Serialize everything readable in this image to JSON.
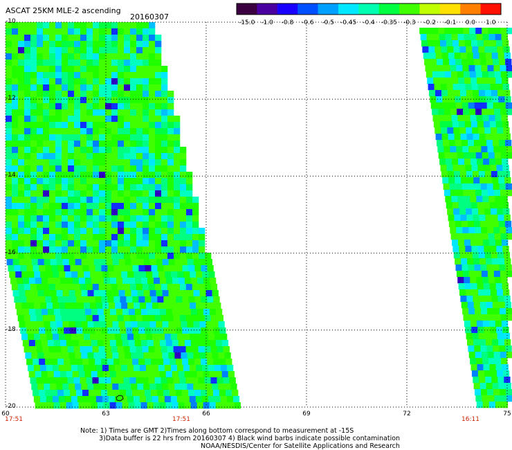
{
  "header": {
    "title": "ASCAT 25KM MLE-2 ascending",
    "date": "20160307"
  },
  "colorbar": {
    "labels": [
      "-15.0",
      "-1.0",
      "-0.8",
      "-0.6",
      "-0.5",
      "-0.45",
      "-0.4",
      "-0.35",
      "-0.3",
      "-0.2",
      "-0.1",
      "0.0",
      "1.0"
    ],
    "colors": [
      "#3a0040",
      "#4a00a0",
      "#1a00ff",
      "#0050ff",
      "#00a0ff",
      "#00e8ff",
      "#00ffb0",
      "#00ff40",
      "#40ff00",
      "#c0ff00",
      "#ffe000",
      "#ff8000",
      "#ff1000"
    ]
  },
  "map": {
    "lat_labels": [
      "-10",
      "-12",
      "-14",
      "-16",
      "-18",
      "-20"
    ],
    "lon_labels": [
      "60",
      "63",
      "66",
      "69",
      "72",
      "75"
    ],
    "lat_range": [
      -20,
      -10
    ],
    "lon_range": [
      60,
      75
    ],
    "grid": true,
    "swath_times": [
      "17:51",
      "17:51",
      "16:11"
    ]
  },
  "footer": {
    "note_line1": "Note: 1) Times are GMT 2)Times along bottom correspond to measurement at -15S",
    "note_line2": "3)Data buffer is 22 hrs from 20160307 4) Black wind barbs indicate possible contamination",
    "credit": "NOAA/NESDIS/Center for Satellite Applications and Research"
  }
}
